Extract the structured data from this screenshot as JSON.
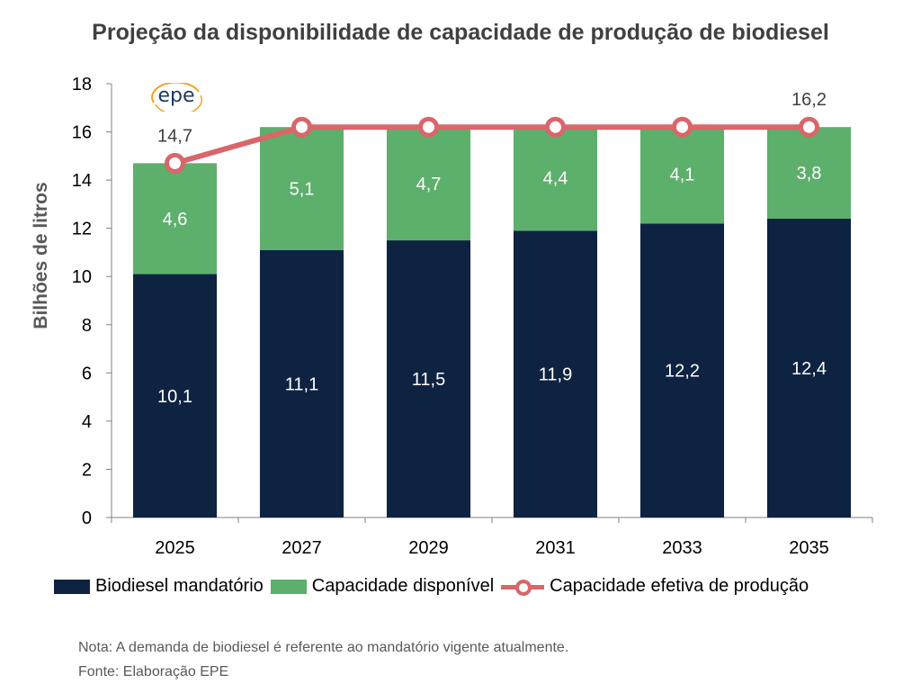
{
  "logo": {
    "text": "epe"
  },
  "chart_data": {
    "type": "bar",
    "stacked": true,
    "title": "Projeção da disponibilidade de capacidade de produção de biodiesel",
    "ylabel": "Bilhões de litros",
    "xlabel": "",
    "ylim": [
      0,
      18
    ],
    "yticks": [
      0,
      2,
      4,
      6,
      8,
      10,
      12,
      14,
      16,
      18
    ],
    "grid": false,
    "legend_position": "bottom",
    "categories": [
      "2025",
      "2027",
      "2029",
      "2031",
      "2033",
      "2035"
    ],
    "series": [
      {
        "name": "Biodiesel mandatório",
        "kind": "bar",
        "color": "#0e2341",
        "values": [
          10.1,
          11.1,
          11.5,
          11.9,
          12.2,
          12.4
        ],
        "labels": [
          "10,1",
          "11,1",
          "11,5",
          "11,9",
          "12,2",
          "12,4"
        ]
      },
      {
        "name": "Capacidade disponível",
        "kind": "bar",
        "color": "#5daf6c",
        "values": [
          4.6,
          5.1,
          4.7,
          4.4,
          4.1,
          3.8
        ],
        "labels": [
          "4,6",
          "5,1",
          "4,7",
          "4,4",
          "4,1",
          "3,8"
        ]
      },
      {
        "name": "Capacidade efetiva de produção",
        "kind": "line",
        "color": "#d9666a",
        "values": [
          14.7,
          16.2,
          16.2,
          16.2,
          16.2,
          16.2
        ],
        "labels": [
          "14,7",
          "",
          "",
          "",
          "",
          "16,2"
        ]
      }
    ]
  },
  "notes": [
    "Nota: A demanda de biodiesel é referente ao mandatório vigente atualmente.",
    "Fonte: Elaboração EPE"
  ]
}
